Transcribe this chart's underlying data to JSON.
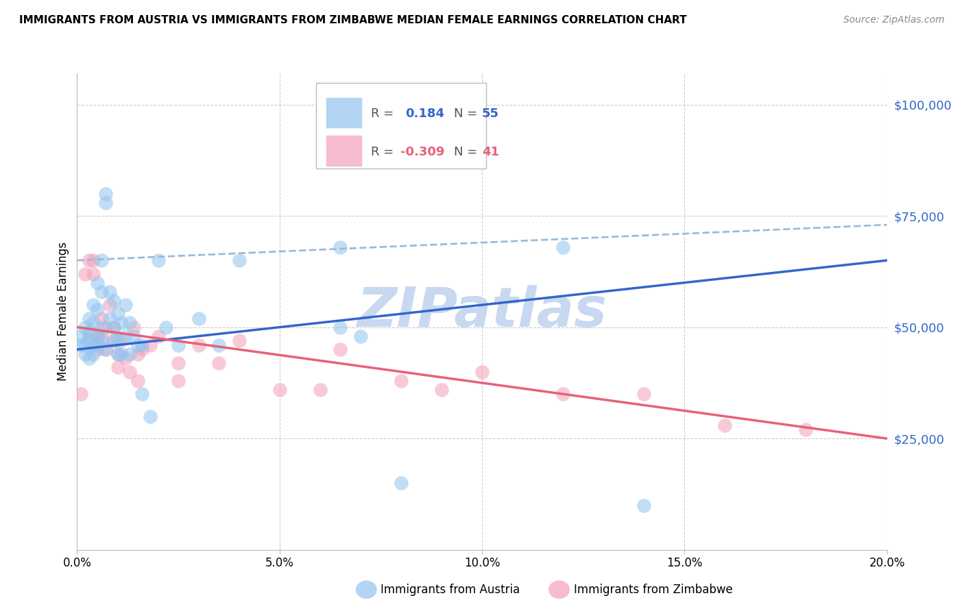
{
  "title": "IMMIGRANTS FROM AUSTRIA VS IMMIGRANTS FROM ZIMBABWE MEDIAN FEMALE EARNINGS CORRELATION CHART",
  "source": "Source: ZipAtlas.com",
  "ylabel": "Median Female Earnings",
  "xmin": 0.0,
  "xmax": 0.2,
  "ymin": 0,
  "ymax": 107000,
  "yticks": [
    0,
    25000,
    50000,
    75000,
    100000
  ],
  "ytick_labels": [
    "",
    "$25,000",
    "$50,000",
    "$75,000",
    "$100,000"
  ],
  "xticks": [
    0.0,
    0.05,
    0.1,
    0.15,
    0.2
  ],
  "xtick_labels": [
    "0.0%",
    "5.0%",
    "10.0%",
    "15.0%",
    "20.0%"
  ],
  "austria_R": 0.184,
  "austria_N": 55,
  "zimbabwe_R": -0.309,
  "zimbabwe_N": 41,
  "austria_color": "#90C4EE",
  "zimbabwe_color": "#F4A0B8",
  "austria_line_color": "#3366CC",
  "zimbabwe_line_color": "#E8607A",
  "dashed_line_color": "#99BBDD",
  "watermark": "ZIPatlas",
  "watermark_color": "#C8D8F0",
  "grid_color": "#CCCCCC",
  "austria_line_x0": 0.0,
  "austria_line_y0": 45000,
  "austria_line_x1": 0.2,
  "austria_line_y1": 65000,
  "zimbabwe_line_x0": 0.0,
  "zimbabwe_line_y0": 50000,
  "zimbabwe_line_x1": 0.2,
  "zimbabwe_line_y1": 25000,
  "dashed_line_x0": 0.0,
  "dashed_line_y0": 65000,
  "dashed_line_x1": 0.2,
  "dashed_line_y1": 73000,
  "austria_x": [
    0.001,
    0.001,
    0.002,
    0.002,
    0.002,
    0.003,
    0.003,
    0.003,
    0.003,
    0.004,
    0.004,
    0.004,
    0.004,
    0.005,
    0.005,
    0.005,
    0.005,
    0.006,
    0.006,
    0.006,
    0.006,
    0.007,
    0.007,
    0.007,
    0.008,
    0.008,
    0.009,
    0.009,
    0.009,
    0.01,
    0.01,
    0.01,
    0.011,
    0.011,
    0.012,
    0.012,
    0.013,
    0.013,
    0.014,
    0.015,
    0.016,
    0.016,
    0.018,
    0.02,
    0.022,
    0.025,
    0.03,
    0.035,
    0.04,
    0.065,
    0.065,
    0.07,
    0.08,
    0.12,
    0.14
  ],
  "austria_y": [
    48000,
    46000,
    50000,
    46000,
    44000,
    52000,
    49000,
    47000,
    43000,
    55000,
    51000,
    46000,
    44000,
    60000,
    54000,
    48000,
    46000,
    65000,
    58000,
    50000,
    47000,
    80000,
    78000,
    45000,
    58000,
    52000,
    56000,
    50000,
    47000,
    53000,
    47000,
    44000,
    51000,
    44000,
    55000,
    48000,
    51000,
    44000,
    48000,
    46000,
    46000,
    35000,
    30000,
    65000,
    50000,
    46000,
    52000,
    46000,
    65000,
    68000,
    50000,
    48000,
    15000,
    68000,
    10000
  ],
  "zimbabwe_x": [
    0.001,
    0.002,
    0.003,
    0.003,
    0.004,
    0.004,
    0.005,
    0.005,
    0.006,
    0.006,
    0.007,
    0.007,
    0.008,
    0.009,
    0.009,
    0.01,
    0.01,
    0.011,
    0.012,
    0.013,
    0.014,
    0.015,
    0.015,
    0.016,
    0.018,
    0.02,
    0.025,
    0.025,
    0.03,
    0.035,
    0.05,
    0.065,
    0.09,
    0.1,
    0.12,
    0.14,
    0.16,
    0.18,
    0.04,
    0.06,
    0.08
  ],
  "zimbabwe_y": [
    35000,
    62000,
    65000,
    48000,
    65000,
    62000,
    48000,
    45000,
    52000,
    48000,
    50000,
    45000,
    55000,
    47000,
    50000,
    44000,
    41000,
    47000,
    43000,
    40000,
    50000,
    44000,
    38000,
    45000,
    46000,
    48000,
    42000,
    38000,
    46000,
    42000,
    36000,
    45000,
    36000,
    40000,
    35000,
    35000,
    28000,
    27000,
    47000,
    36000,
    38000
  ]
}
